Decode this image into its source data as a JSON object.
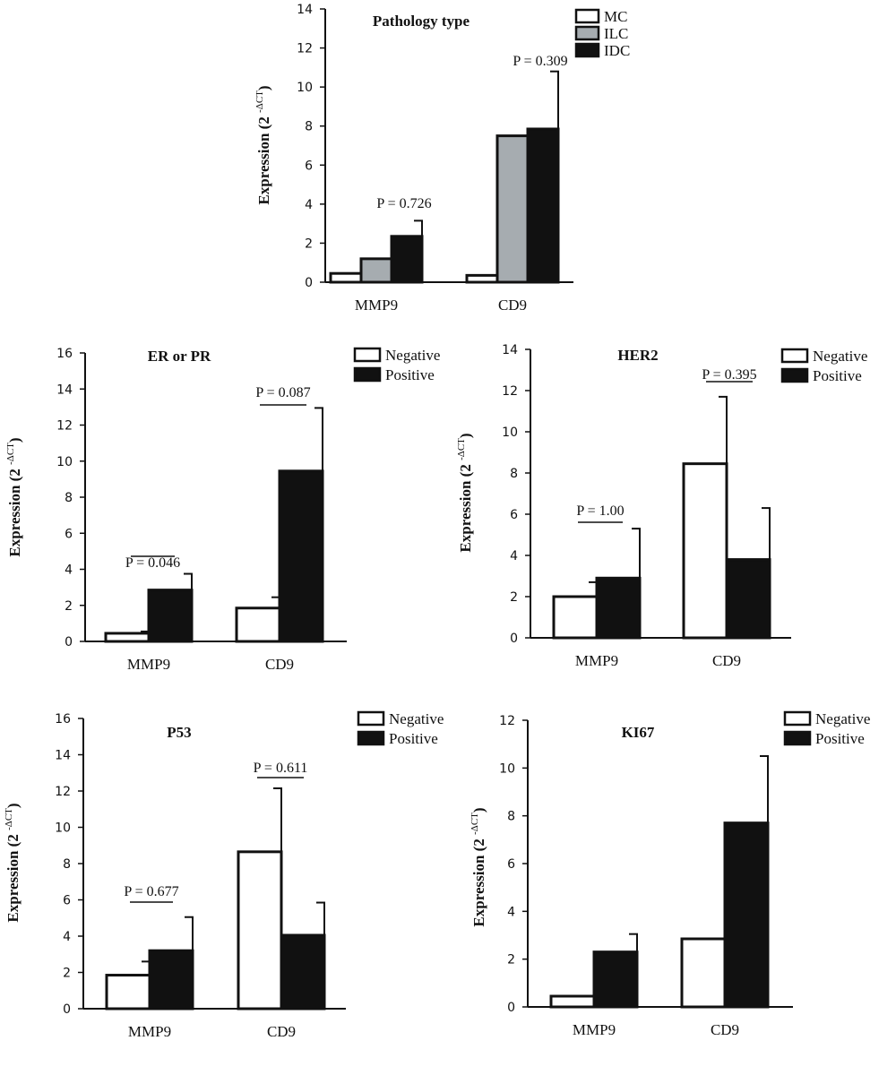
{
  "chart_data": [
    {
      "type": "bar",
      "title": "Pathology type",
      "ylabel": "Expression (2 -ΔCT)",
      "ylim": [
        0,
        14
      ],
      "yticks": [
        "0",
        "2",
        "4",
        "6",
        "8",
        "10",
        "12",
        "14"
      ],
      "categories": [
        "MMP9",
        "CD9"
      ],
      "legend_position": "top-right",
      "series": [
        {
          "name": "MC",
          "fill": "#ffffff",
          "values": [
            0.45,
            0.35
          ],
          "errors": [
            0,
            0
          ]
        },
        {
          "name": "ILC",
          "fill": "#a6acb0",
          "values": [
            1.2,
            7.5
          ],
          "errors": [
            0,
            0
          ]
        },
        {
          "name": "IDC",
          "fill": "#111111",
          "values": [
            2.35,
            7.85
          ],
          "errors": [
            0.8,
            2.95
          ]
        }
      ],
      "annotations": [
        {
          "text": "P = 0.726",
          "category": 0
        },
        {
          "text": "P = 0.309",
          "category": 1
        }
      ]
    },
    {
      "type": "bar",
      "title": "ER or PR",
      "ylabel": "Expression (2 -ΔCT)",
      "ylim": [
        0,
        16
      ],
      "yticks": [
        "0",
        "2",
        "4",
        "6",
        "8",
        "10",
        "12",
        "14",
        "16"
      ],
      "categories": [
        "MMP9",
        "CD9"
      ],
      "legend_position": "top-right",
      "series": [
        {
          "name": "Negative",
          "fill": "#ffffff",
          "values": [
            0.45,
            1.85
          ],
          "errors": [
            0.1,
            0.6
          ]
        },
        {
          "name": "Positive",
          "fill": "#111111",
          "values": [
            2.85,
            9.45
          ],
          "errors": [
            0.9,
            3.5
          ]
        }
      ],
      "annotations": [
        {
          "text": "P = 0.046",
          "category": 0
        },
        {
          "text": "P = 0.087",
          "category": 1
        }
      ]
    },
    {
      "type": "bar",
      "title": "HER2",
      "ylabel": "Expression (2 -ΔCT)",
      "ylim": [
        0,
        14
      ],
      "yticks": [
        "0",
        "2",
        "4",
        "6",
        "8",
        "10",
        "12",
        "14"
      ],
      "categories": [
        "MMP9",
        "CD9"
      ],
      "legend_position": "top-right",
      "series": [
        {
          "name": "Negative",
          "fill": "#ffffff",
          "values": [
            2.0,
            8.45
          ],
          "errors": [
            0.7,
            3.25
          ]
        },
        {
          "name": "Positive",
          "fill": "#111111",
          "values": [
            2.9,
            3.8
          ],
          "errors": [
            2.4,
            2.5
          ]
        }
      ],
      "annotations": [
        {
          "text": "P = 1.00",
          "category": 0
        },
        {
          "text": "P = 0.395",
          "category": 1
        }
      ]
    },
    {
      "type": "bar",
      "title": "P53",
      "ylabel": "Expression (2 -ΔCT)",
      "ylim": [
        0,
        16
      ],
      "yticks": [
        "0",
        "2",
        "4",
        "6",
        "8",
        "10",
        "12",
        "14",
        "16"
      ],
      "categories": [
        "MMP9",
        "CD9"
      ],
      "legend_position": "top-right",
      "series": [
        {
          "name": "Negative",
          "fill": "#ffffff",
          "values": [
            1.85,
            8.65
          ],
          "errors": [
            0.75,
            3.5
          ]
        },
        {
          "name": "Positive",
          "fill": "#111111",
          "values": [
            3.2,
            4.05
          ],
          "errors": [
            1.85,
            1.8
          ]
        }
      ],
      "annotations": [
        {
          "text": "P = 0.677",
          "category": 0
        },
        {
          "text": "P = 0.611",
          "category": 1
        }
      ]
    },
    {
      "type": "bar",
      "title": "KI67",
      "ylabel": "Expression (2 -ΔCT)",
      "ylim": [
        0,
        12
      ],
      "yticks": [
        "0",
        "2",
        "4",
        "6",
        "8",
        "10",
        "12"
      ],
      "categories": [
        "MMP9",
        "CD9"
      ],
      "legend_position": "top-right",
      "series": [
        {
          "name": "Negative",
          "fill": "#ffffff",
          "values": [
            0.45,
            2.85
          ],
          "errors": [
            0,
            0
          ]
        },
        {
          "name": "Positive",
          "fill": "#111111",
          "values": [
            2.3,
            7.7
          ],
          "errors": [
            0.75,
            2.8
          ]
        }
      ],
      "annotations": []
    }
  ]
}
